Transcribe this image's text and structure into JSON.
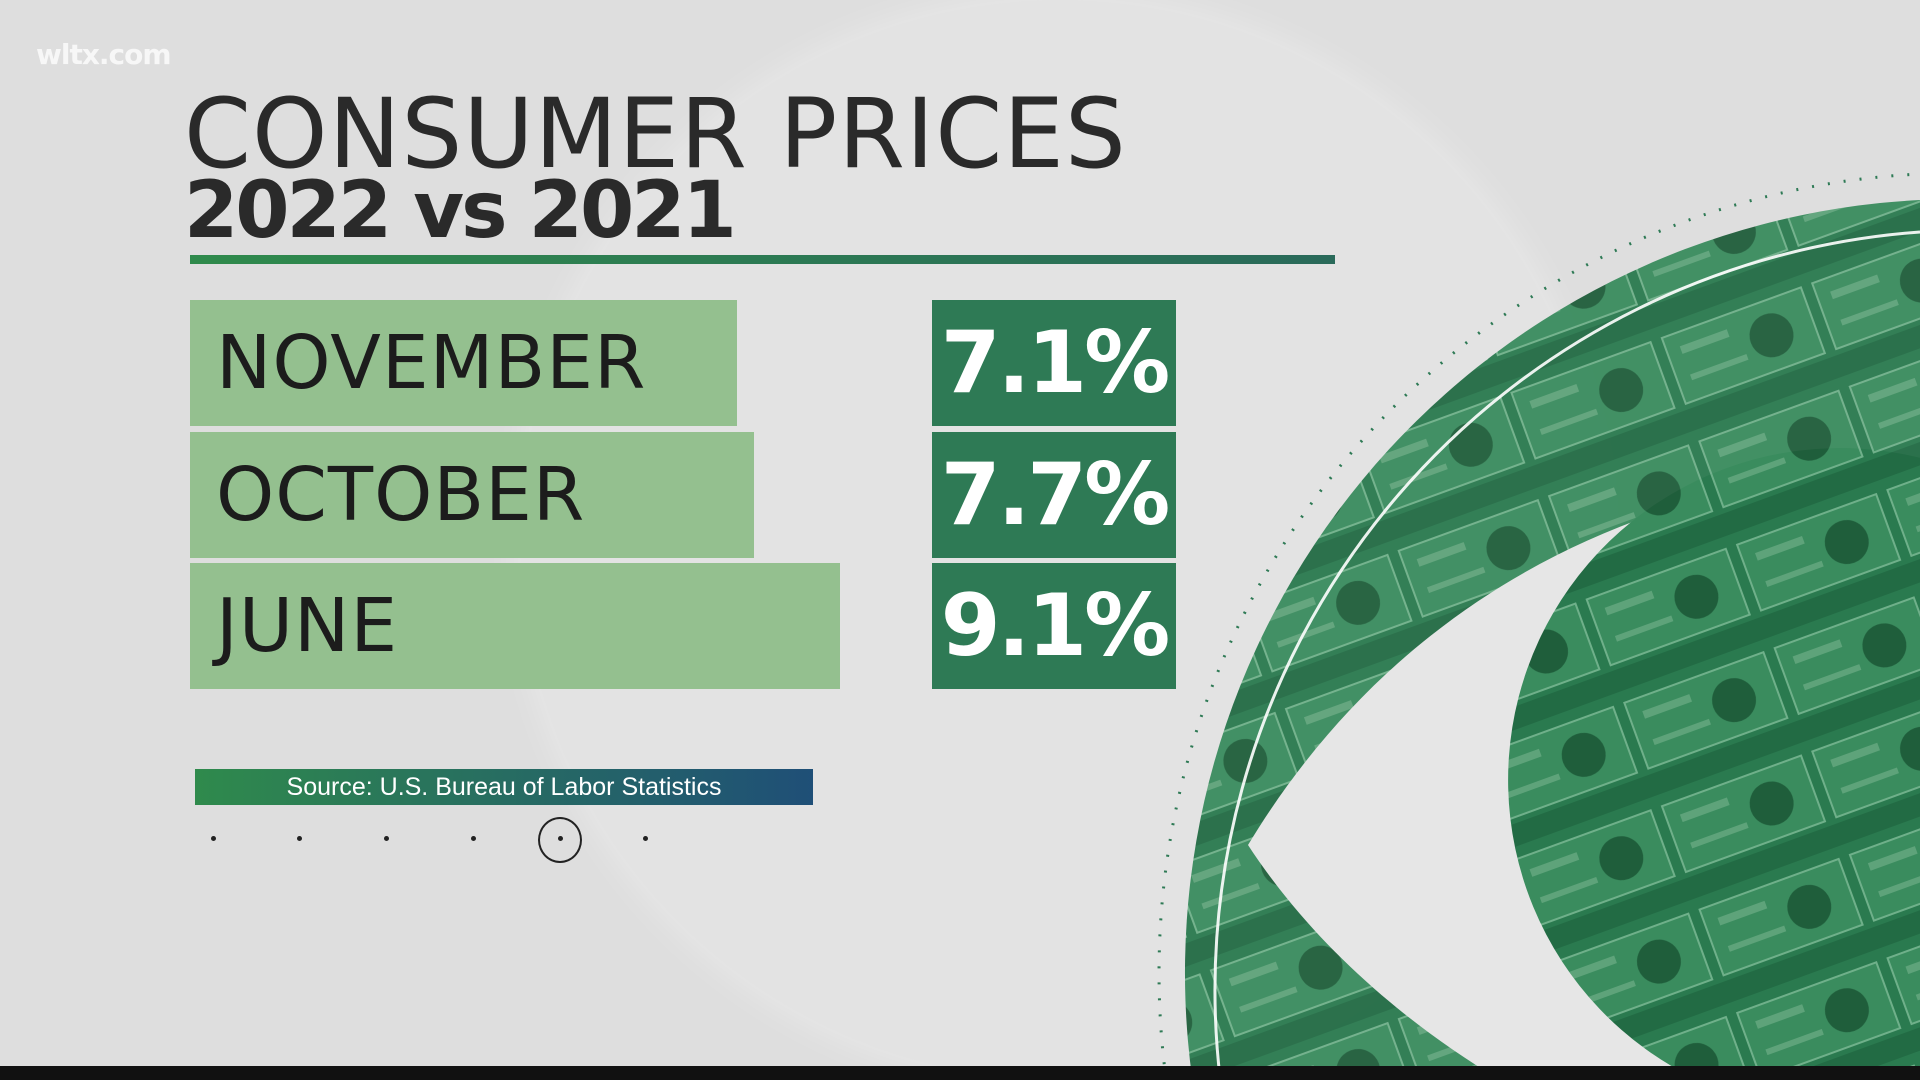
{
  "watermark": "wltx.com",
  "header": {
    "title": "CONSUMER PRICES",
    "subtitle": "2022 vs 2021"
  },
  "rows": [
    {
      "month": "NOVEMBER",
      "value": "7.1%",
      "pct": 7.1
    },
    {
      "month": "OCTOBER",
      "value": "7.7%",
      "pct": 7.7
    },
    {
      "month": "JUNE",
      "value": "9.1%",
      "pct": 9.1
    }
  ],
  "source": "Source: U.S. Bureau of Labor Statistics",
  "pager": {
    "total": 6,
    "active": 5
  },
  "colors": {
    "label_bg": "#94c08f",
    "value_bg": "#2e7a55",
    "accent_green": "#2f8a4c",
    "accent_blue": "#1f4f77"
  },
  "icons": {
    "logo": "cbs-eye-money-logo"
  }
}
